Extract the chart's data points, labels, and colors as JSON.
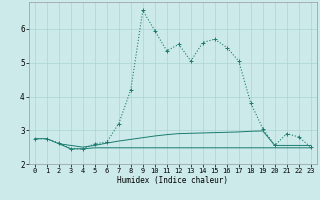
{
  "xlabel": "Humidex (Indice chaleur)",
  "background_color": "#cceaea",
  "grid_color": "#aad4d4",
  "line_color": "#1a7a6e",
  "xlim": [
    -0.5,
    23.5
  ],
  "ylim": [
    2.0,
    6.8
  ],
  "yticks": [
    2,
    3,
    4,
    5,
    6
  ],
  "xticks": [
    0,
    1,
    2,
    3,
    4,
    5,
    6,
    7,
    8,
    9,
    10,
    11,
    12,
    13,
    14,
    15,
    16,
    17,
    18,
    19,
    20,
    21,
    22,
    23
  ],
  "line1_x": [
    0,
    1,
    2,
    3,
    4,
    5,
    6,
    7,
    8,
    9,
    10,
    11,
    12,
    13,
    14,
    15,
    16,
    17,
    18,
    19,
    20,
    21,
    22,
    23
  ],
  "line1_y": [
    2.75,
    2.75,
    2.62,
    2.45,
    2.45,
    2.6,
    2.65,
    3.2,
    4.2,
    6.55,
    5.95,
    5.35,
    5.55,
    5.05,
    5.6,
    5.7,
    5.45,
    5.05,
    3.8,
    3.05,
    2.55,
    2.9,
    2.8,
    2.5
  ],
  "line2_x": [
    0,
    1,
    2,
    3,
    4,
    5,
    6,
    7,
    8,
    9,
    10,
    11,
    12,
    13,
    14,
    15,
    16,
    17,
    18,
    19,
    20,
    21,
    22,
    23
  ],
  "line2_y": [
    2.75,
    2.75,
    2.6,
    2.55,
    2.5,
    2.55,
    2.62,
    2.68,
    2.73,
    2.78,
    2.83,
    2.87,
    2.9,
    2.91,
    2.92,
    2.93,
    2.94,
    2.95,
    2.97,
    2.98,
    2.55,
    2.55,
    2.55,
    2.55
  ],
  "line3_x": [
    2,
    3,
    4,
    5,
    6,
    7,
    8,
    9,
    10,
    11,
    12,
    13,
    14,
    15,
    16,
    17,
    18,
    19,
    20,
    21,
    22,
    23
  ],
  "line3_y": [
    2.6,
    2.45,
    2.45,
    2.48,
    2.48,
    2.48,
    2.48,
    2.48,
    2.48,
    2.48,
    2.48,
    2.48,
    2.48,
    2.48,
    2.48,
    2.48,
    2.48,
    2.48,
    2.48,
    2.48,
    2.48,
    2.48
  ]
}
